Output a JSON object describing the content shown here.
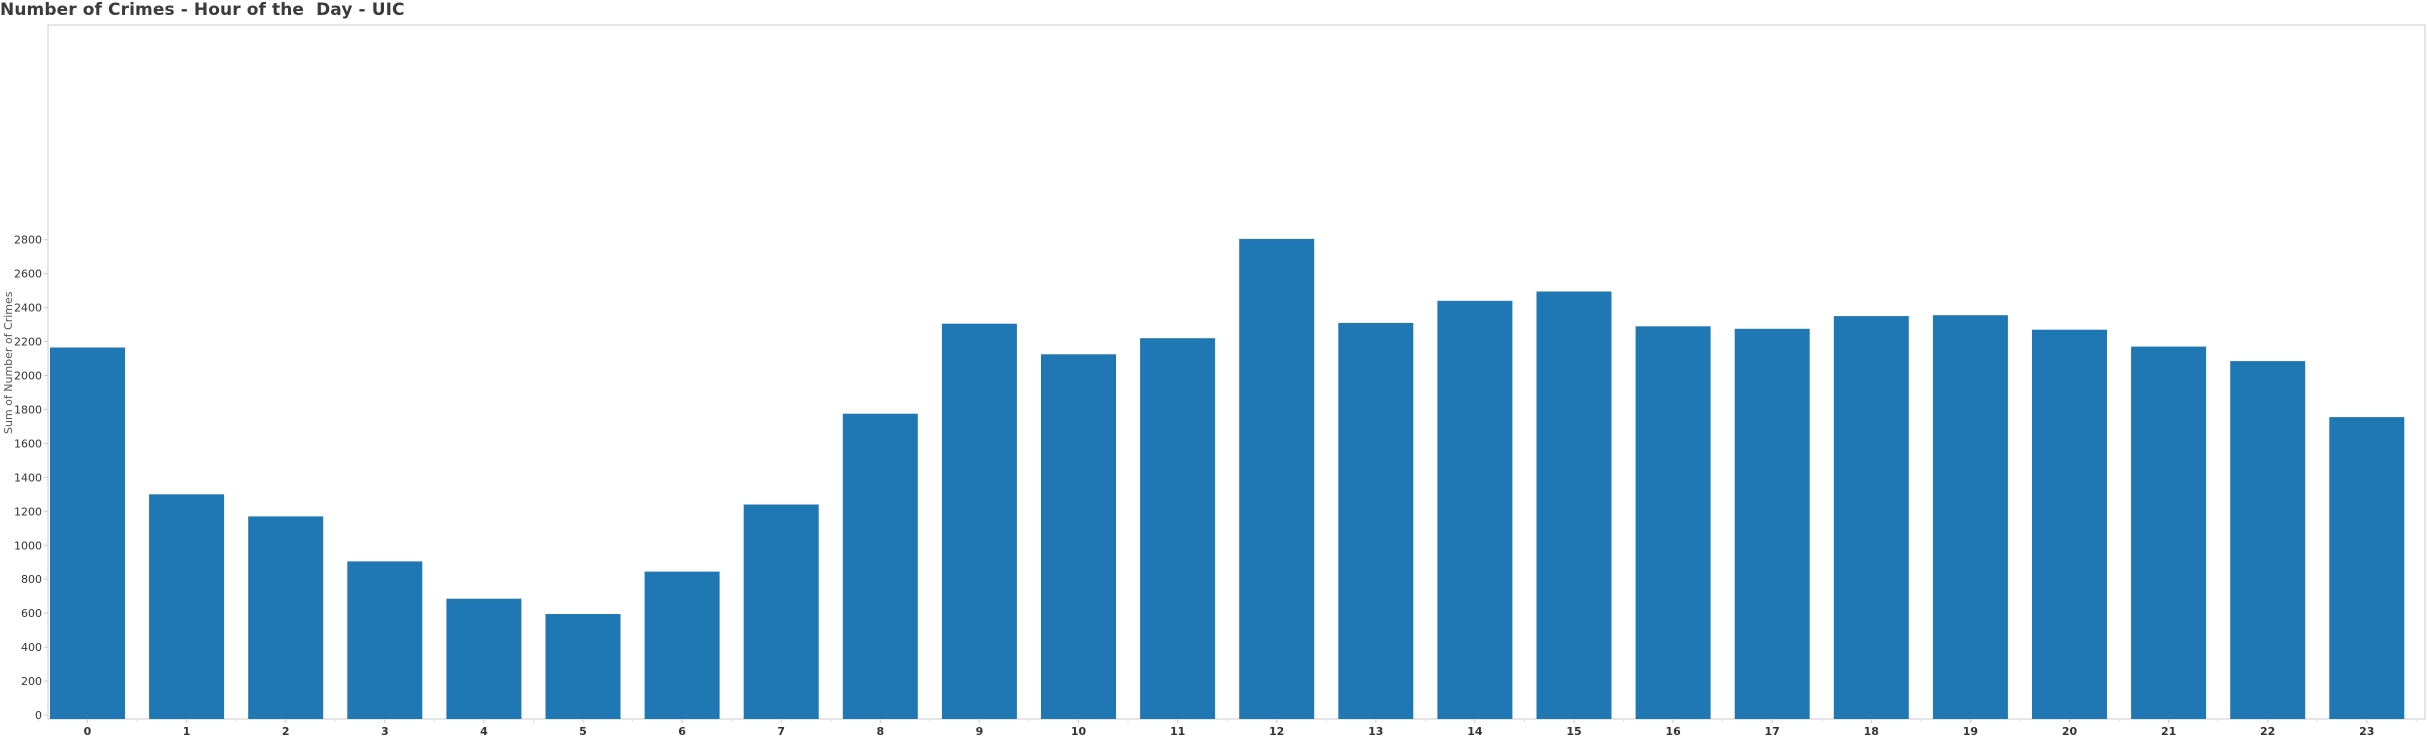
{
  "chart_data": {
    "type": "bar",
    "title": "Number of Crimes - Hour of the  Day - UIC",
    "xlabel": "",
    "ylabel": "Sum of Number of Crimes",
    "categories": [
      "0",
      "1",
      "2",
      "3",
      "4",
      "5",
      "6",
      "7",
      "8",
      "9",
      "10",
      "11",
      "12",
      "13",
      "14",
      "15",
      "16",
      "17",
      "18",
      "19",
      "20",
      "21",
      "22",
      "23"
    ],
    "values": [
      2165,
      1300,
      1170,
      905,
      685,
      595,
      845,
      1240,
      1775,
      2305,
      2125,
      2220,
      2805,
      2310,
      2440,
      2495,
      2290,
      2275,
      2350,
      2355,
      2270,
      2170,
      2085,
      1755
    ],
    "ylim": [
      0,
      2920
    ],
    "yticks": [
      "0",
      "200",
      "400",
      "600",
      "800",
      "1000",
      "1200",
      "1400",
      "1600",
      "1800",
      "2000",
      "2200",
      "2400",
      "2600",
      "2800"
    ],
    "grid": false,
    "legend": "none",
    "bar_color": "#1f77b4",
    "axis_color": "#cccccc"
  }
}
